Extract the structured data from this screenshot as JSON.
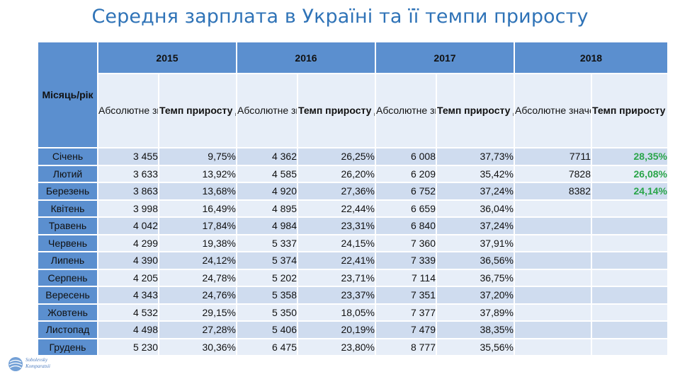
{
  "title": "Середня зарплата в Україні та її темпи приросту",
  "header": {
    "corner": "Місяць/рік",
    "years": [
      "2015",
      "2016",
      "2017",
      "2018"
    ],
    "abs_label": "Абсолютне значення (грн)",
    "rate_label": "Темп приросту до відповідного місяця минулого року"
  },
  "rows": [
    {
      "month": "Січень",
      "v": [
        "3 455",
        "9,75%",
        "4 362",
        "26,25%",
        "6 008",
        "37,73%",
        "7711",
        "28,35%"
      ]
    },
    {
      "month": "Лютий",
      "v": [
        "3 633",
        "13,92%",
        "4 585",
        "26,20%",
        "6 209",
        "35,42%",
        "7828",
        "26,08%"
      ]
    },
    {
      "month": "Березень",
      "v": [
        "3 863",
        "13,68%",
        "4 920",
        "27,36%",
        "6 752",
        "37,24%",
        "8382",
        "24,14%"
      ]
    },
    {
      "month": "Квітень",
      "v": [
        "3 998",
        "16,49%",
        "4 895",
        "22,44%",
        "6 659",
        "36,04%",
        "",
        ""
      ]
    },
    {
      "month": "Травень",
      "v": [
        "4 042",
        "17,84%",
        "4 984",
        "23,31%",
        "6 840",
        "37,24%",
        "",
        ""
      ]
    },
    {
      "month": "Червень",
      "v": [
        "4 299",
        "19,38%",
        "5 337",
        "24,15%",
        "7 360",
        "37,91%",
        "",
        ""
      ]
    },
    {
      "month": "Липень",
      "v": [
        "4 390",
        "24,12%",
        "5 374",
        "22,41%",
        "7 339",
        "36,56%",
        "",
        ""
      ]
    },
    {
      "month": "Серпень",
      "v": [
        "4 205",
        "24,78%",
        "5 202",
        "23,71%",
        "7 114",
        "36,75%",
        "",
        ""
      ]
    },
    {
      "month": "Вересень",
      "v": [
        "4 343",
        "24,76%",
        "5 358",
        "23,37%",
        "7 351",
        "37,20%",
        "",
        ""
      ]
    },
    {
      "month": "Жовтень",
      "v": [
        "4 532",
        "29,15%",
        "5 350",
        "18,05%",
        "7 377",
        "37,89%",
        "",
        ""
      ]
    },
    {
      "month": "Листопад",
      "v": [
        "4 498",
        "27,28%",
        "5 406",
        "20,19%",
        "7 479",
        "38,35%",
        "",
        ""
      ]
    },
    {
      "month": "Грудень",
      "v": [
        "5 230",
        "30,36%",
        "6 475",
        "23,80%",
        "8 777",
        "35,56%",
        "",
        ""
      ]
    }
  ],
  "highlight_color": "#2aa54a",
  "logo_text": [
    "Sobolevsky",
    "Komparatsii"
  ]
}
